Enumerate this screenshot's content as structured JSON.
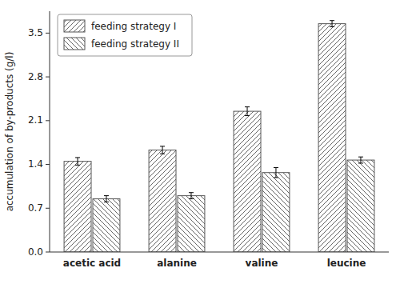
{
  "chart_data": {
    "type": "bar",
    "ylabel": "accumulation of by-products (g/l)",
    "categories": [
      "acetic acid",
      "alanine",
      "valine",
      "leucine"
    ],
    "series": [
      {
        "name": "feeding strategy I",
        "color": "white",
        "values": [
          1.45,
          1.63,
          2.25,
          3.65
        ],
        "errors": [
          0.06,
          0.06,
          0.07,
          0.05
        ]
      },
      {
        "name": "feeding strategy II",
        "color": "white",
        "values": [
          0.85,
          0.9,
          1.27,
          1.47
        ],
        "errors": [
          0.05,
          0.05,
          0.08,
          0.05
        ]
      }
    ],
    "ylim": [
      0.0,
      3.85
    ],
    "yticks": [
      {
        "value": 0.0,
        "label": "0.0"
      },
      0.7,
      1.4,
      2.1,
      2.8,
      3.5
    ],
    "grid": false,
    "legend": "upper-left"
  }
}
